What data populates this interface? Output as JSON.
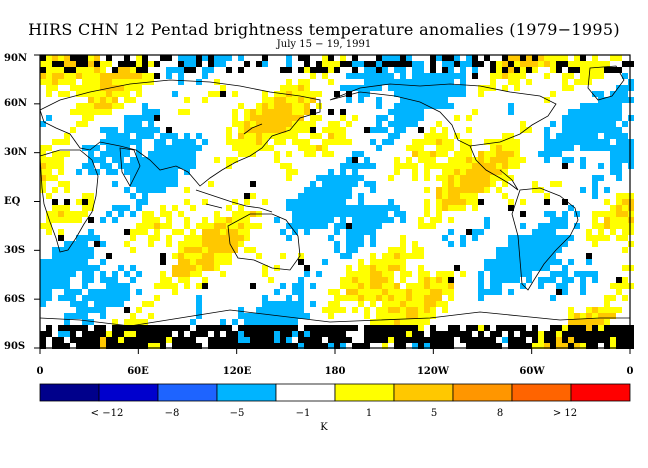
{
  "title": "HIRS CHN 12 Pentad brightness temperature anomalies (1979−1995)",
  "subtitle": "July 15 − 19, 1991",
  "lat_labels": [
    "90N",
    "60N",
    "30N",
    "EQ",
    "30S",
    "60S",
    "90S"
  ],
  "lon_labels": [
    "0",
    "60E",
    "120E",
    "180",
    "120W",
    "60W",
    "0"
  ],
  "colorbar": {
    "colors": [
      "#00008b",
      "#0000cd",
      "#1e64ff",
      "#00b4ff",
      "#ffffff",
      "#ffff00",
      "#ffc800",
      "#ff9600",
      "#ff6400",
      "#ff0000"
    ],
    "labels": [
      "< −12",
      "−8",
      "−5",
      "−1",
      "1",
      "5",
      "8",
      "> 12"
    ],
    "unit": "K"
  },
  "colors": {
    "missing": "#000000",
    "coastline": "#000000",
    "cold": "#00b4ff",
    "warm": "#ffff00",
    "warm2": "#ffc800",
    "warm3": "#ff9600"
  }
}
